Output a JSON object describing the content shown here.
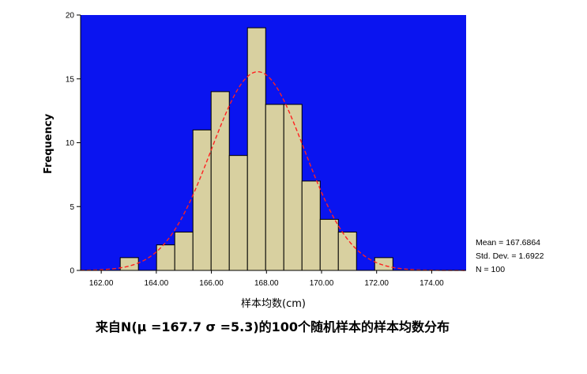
{
  "chart_data": {
    "type": "bar",
    "subtype": "histogram",
    "xlabel": "样本均数(cm)",
    "ylabel": "Frequency",
    "caption": "来自N(μ =167.7  σ =5.3)的100个随机样本的样本均数分布",
    "xlim": [
      161.25,
      175.25
    ],
    "ylim": [
      0,
      20
    ],
    "x_ticks": [
      162,
      164,
      166,
      168,
      170,
      172,
      174
    ],
    "x_tick_labels": [
      "162.00",
      "164.00",
      "166.00",
      "168.00",
      "170.00",
      "172.00",
      "174.00"
    ],
    "y_ticks": [
      0,
      5,
      10,
      15,
      20
    ],
    "y_tick_labels": [
      "0",
      "5",
      "10",
      "15",
      "20"
    ],
    "bin_width": 0.66,
    "bins": [
      {
        "x0": 162.69,
        "x1": 163.35,
        "count": 1
      },
      {
        "x0": 163.35,
        "x1": 164.01,
        "count": 0
      },
      {
        "x0": 164.01,
        "x1": 164.67,
        "count": 2
      },
      {
        "x0": 164.67,
        "x1": 165.33,
        "count": 3
      },
      {
        "x0": 165.33,
        "x1": 165.99,
        "count": 11
      },
      {
        "x0": 165.99,
        "x1": 166.65,
        "count": 14
      },
      {
        "x0": 166.65,
        "x1": 167.31,
        "count": 9
      },
      {
        "x0": 167.31,
        "x1": 167.97,
        "count": 19
      },
      {
        "x0": 167.97,
        "x1": 168.63,
        "count": 13
      },
      {
        "x0": 168.63,
        "x1": 169.29,
        "count": 13
      },
      {
        "x0": 169.29,
        "x1": 169.95,
        "count": 7
      },
      {
        "x0": 169.95,
        "x1": 170.61,
        "count": 4
      },
      {
        "x0": 170.61,
        "x1": 171.27,
        "count": 3
      },
      {
        "x0": 171.27,
        "x1": 171.93,
        "count": 0
      },
      {
        "x0": 171.93,
        "x1": 172.59,
        "count": 1
      }
    ],
    "normal_curve": {
      "mean": 167.6864,
      "sd": 1.6922,
      "n": 100
    },
    "stats": {
      "mean_label": "Mean = 167.6864",
      "sd_label": "Std. Dev. = 1.6922",
      "n_label": "N = 100"
    },
    "colors": {
      "plot_background": "#0a14f0",
      "bar_fill": "#d8d0a0",
      "bar_stroke": "#000000",
      "curve": "#ff2020"
    },
    "grid": false
  }
}
